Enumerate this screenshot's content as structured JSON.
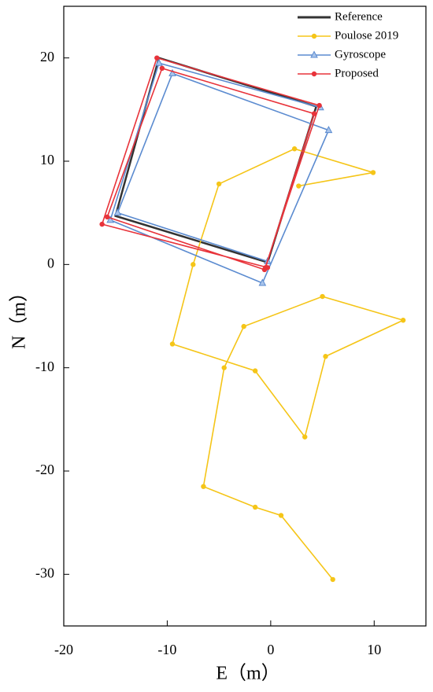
{
  "chart_data": {
    "type": "line",
    "xlabel": "E（m）",
    "ylabel": "N（m）",
    "xlim": [
      -20,
      15
    ],
    "ylim": [
      -35,
      25
    ],
    "xticks": [
      -20,
      -10,
      0,
      10
    ],
    "yticks": [
      -30,
      -20,
      -10,
      0,
      10,
      20
    ],
    "legend": "upper right",
    "series": [
      {
        "name": "Reference",
        "color": "#333333",
        "marker": "none",
        "x": [
          -0.3,
          -15.0,
          -10.8,
          4.4,
          -0.3
        ],
        "values": [
          0.2,
          4.7,
          20.0,
          15.3,
          0.2
        ]
      },
      {
        "name": "Poulose 2019",
        "color": "#f5c518",
        "marker": "circle",
        "x": [
          6.0,
          1.0,
          -1.5,
          -6.5,
          -4.5,
          -2.6,
          5.0,
          12.8,
          5.3,
          3.3,
          -1.5,
          -9.5,
          -7.5,
          -5.0,
          2.3,
          9.9,
          2.7
        ],
        "values": [
          -30.5,
          -24.3,
          -23.5,
          -21.5,
          -10.0,
          -6.0,
          -3.1,
          -5.4,
          -8.9,
          -16.7,
          -10.3,
          -7.7,
          0.0,
          7.8,
          11.2,
          8.9,
          7.6
        ]
      },
      {
        "name": "Gyroscope",
        "color": "#5b8bd0",
        "marker": "triangle",
        "x": [
          -0.3,
          -14.8,
          -9.5,
          5.6,
          -0.8,
          -15.5,
          -10.8,
          4.8
        ],
        "values": [
          0.3,
          5.0,
          18.5,
          13.0,
          -1.8,
          4.3,
          19.5,
          15.2
        ]
      },
      {
        "name": "Proposed",
        "color": "#e8333a",
        "marker": "circle",
        "x": [
          -0.3,
          -16.3,
          -11.0,
          4.7,
          -0.6,
          -15.8,
          -10.5,
          4.2,
          -0.5
        ],
        "values": [
          -0.3,
          3.9,
          20.0,
          15.4,
          -0.5,
          4.6,
          19.0,
          14.6,
          -0.3
        ]
      }
    ]
  }
}
